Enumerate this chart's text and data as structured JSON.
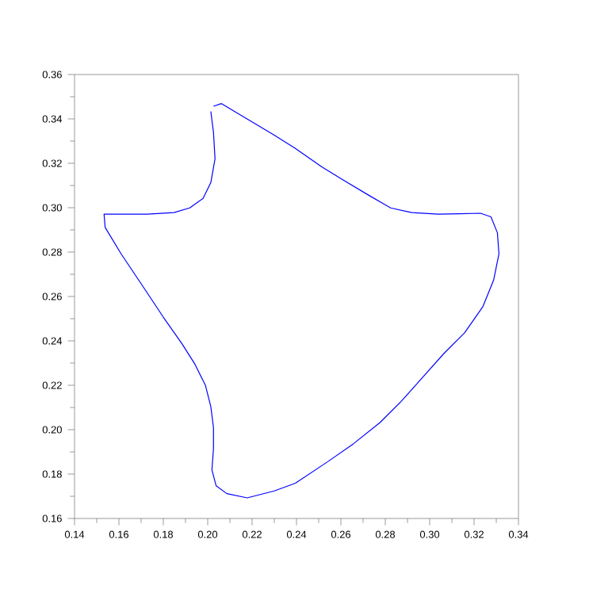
{
  "chart_data": {
    "type": "line",
    "marker": "none",
    "line_style": "solid",
    "grid": false,
    "series": [
      {
        "color": "#0000ff",
        "x": [
          0.2026,
          0.2062,
          0.2181,
          0.23,
          0.2395,
          0.2514,
          0.261,
          0.2729,
          0.2824,
          0.2919,
          0.3038,
          0.3133,
          0.3229,
          0.3276,
          0.3305,
          0.3312,
          0.3288,
          0.324,
          0.3157,
          0.3062,
          0.2967,
          0.2871,
          0.2776,
          0.2657,
          0.2538,
          0.2395,
          0.23,
          0.2178,
          0.2086,
          0.2038,
          0.2019,
          0.2026,
          0.2026,
          0.2014,
          0.199,
          0.1943,
          0.1883,
          0.18,
          0.1705,
          0.161,
          0.1538,
          0.1533,
          0.1614,
          0.1729,
          0.1848,
          0.1919,
          0.1979,
          0.2014,
          0.2033,
          0.2026,
          0.2014
        ],
        "values": [
          0.3457,
          0.3469,
          0.3398,
          0.3327,
          0.3267,
          0.3184,
          0.3125,
          0.3054,
          0.2999,
          0.2978,
          0.2971,
          0.2973,
          0.2975,
          0.2959,
          0.2887,
          0.2792,
          0.2674,
          0.2555,
          0.2436,
          0.2341,
          0.2234,
          0.2127,
          0.2032,
          0.1937,
          0.1854,
          0.1759,
          0.1724,
          0.1693,
          0.1712,
          0.1747,
          0.1819,
          0.1914,
          0.2009,
          0.2104,
          0.2199,
          0.2294,
          0.2389,
          0.2507,
          0.265,
          0.2792,
          0.2911,
          0.2971,
          0.2971,
          0.2971,
          0.2978,
          0.2999,
          0.3042,
          0.3113,
          0.322,
          0.3339,
          0.3434
        ]
      }
    ],
    "xlim": [
      0.14,
      0.34
    ],
    "ylim": [
      0.16,
      0.36
    ],
    "xticks": [
      {
        "value": 0.14,
        "label": "0.14"
      },
      {
        "value": 0.16,
        "label": "0.16"
      },
      {
        "value": 0.18,
        "label": "0.18"
      },
      {
        "value": 0.2,
        "label": "0.20"
      },
      {
        "value": 0.22,
        "label": "0.22"
      },
      {
        "value": 0.24,
        "label": "0.24"
      },
      {
        "value": 0.26,
        "label": "0.26"
      },
      {
        "value": 0.28,
        "label": "0.28"
      },
      {
        "value": 0.3,
        "label": "0.30"
      },
      {
        "value": 0.32,
        "label": "0.32"
      },
      {
        "value": 0.34,
        "label": "0.34"
      }
    ],
    "yticks": [
      {
        "value": 0.16,
        "label": "0.16"
      },
      {
        "value": 0.18,
        "label": "0.18"
      },
      {
        "value": 0.2,
        "label": "0.20"
      },
      {
        "value": 0.22,
        "label": "0.22"
      },
      {
        "value": 0.24,
        "label": "0.24"
      },
      {
        "value": 0.26,
        "label": "0.26"
      },
      {
        "value": 0.28,
        "label": "0.28"
      },
      {
        "value": 0.3,
        "label": "0.30"
      },
      {
        "value": 0.32,
        "label": "0.32"
      },
      {
        "value": 0.34,
        "label": "0.34"
      },
      {
        "value": 0.36,
        "label": "0.36"
      }
    ]
  }
}
